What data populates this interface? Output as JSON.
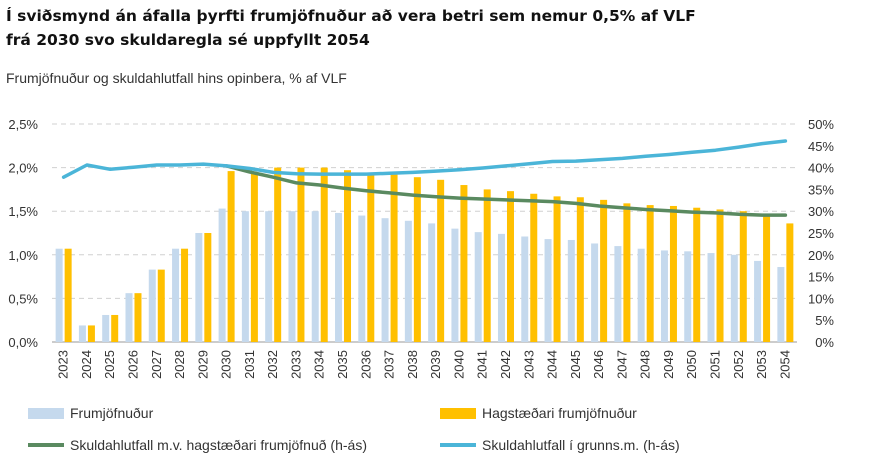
{
  "title_line1": "Í sviðsmynd án áfalla þyrfti frumjöfnuður að vera betri sem nemur 0,5% af VLF",
  "title_line2": "frá 2030 svo skuldaregla sé uppfyllt 2054",
  "subtitle": "Frumjöfnuður og skuldahlutfall hins opinbera, % af VLF",
  "colors": {
    "primary_bar": "#c5d9ed",
    "favorable_bar": "#ffc000",
    "debt_favorable": "#5a8a60",
    "debt_base": "#4bb5d8",
    "grid": "#d0d0d0"
  },
  "chart_data": {
    "type": "bar",
    "categories": [
      "2023",
      "2024",
      "2025",
      "2026",
      "2027",
      "2028",
      "2029",
      "2030",
      "2031",
      "2032",
      "2033",
      "2034",
      "2035",
      "2036",
      "2037",
      "2038",
      "2039",
      "2040",
      "2041",
      "2042",
      "2043",
      "2044",
      "2045",
      "2046",
      "2047",
      "2048",
      "2049",
      "2050",
      "2051",
      "2052",
      "2053",
      "2054"
    ],
    "yticks_left": [
      "0,0%",
      "0,5%",
      "1,0%",
      "1,5%",
      "2,0%",
      "2,5%"
    ],
    "yticks_right": [
      "0%",
      "5%",
      "10%",
      "15%",
      "20%",
      "25%",
      "30%",
      "35%",
      "40%",
      "45%",
      "50%"
    ],
    "ylim": [
      0,
      2.5
    ],
    "ylim_right": [
      0,
      50
    ],
    "series": [
      {
        "name": "Frumjöfnuður",
        "type": "bar",
        "axis": "left",
        "values": [
          1.07,
          0.19,
          0.31,
          0.56,
          0.83,
          1.07,
          1.25,
          1.53,
          1.5,
          1.5,
          1.5,
          1.5,
          1.48,
          1.45,
          1.42,
          1.39,
          1.36,
          1.3,
          1.26,
          1.24,
          1.21,
          1.18,
          1.17,
          1.13,
          1.1,
          1.07,
          1.05,
          1.04,
          1.02,
          1.0,
          0.93,
          0.86
        ]
      },
      {
        "name": "Hagstæðari frumjöfnuður",
        "type": "bar",
        "axis": "left",
        "values": [
          1.07,
          0.19,
          0.31,
          0.56,
          0.83,
          1.07,
          1.25,
          1.96,
          1.95,
          2.0,
          2.0,
          2.0,
          1.97,
          1.94,
          1.92,
          1.89,
          1.86,
          1.8,
          1.75,
          1.73,
          1.7,
          1.67,
          1.66,
          1.63,
          1.59,
          1.57,
          1.56,
          1.54,
          1.52,
          1.5,
          1.44,
          1.36
        ]
      },
      {
        "name": "Skuldahlutfall m.v. hagstæðari frumjöfnuð (h-ás)",
        "type": "line",
        "axis": "right",
        "values": [
          null,
          null,
          null,
          null,
          null,
          null,
          null,
          40.4,
          39.0,
          37.8,
          36.5,
          36.0,
          35.3,
          34.7,
          34.2,
          33.7,
          33.3,
          33.0,
          32.8,
          32.6,
          32.4,
          32.2,
          31.8,
          31.2,
          30.8,
          30.4,
          30.1,
          29.8,
          29.6,
          29.3,
          29.1,
          29.1
        ]
      },
      {
        "name": "Skuldahlutfall í grunns.m. (h-ás)",
        "type": "line",
        "axis": "right",
        "values": [
          37.8,
          40.6,
          39.6,
          40.1,
          40.6,
          40.6,
          40.8,
          40.4,
          39.8,
          38.9,
          38.6,
          38.5,
          38.5,
          38.5,
          38.7,
          38.9,
          39.2,
          39.5,
          39.9,
          40.4,
          40.9,
          41.4,
          41.5,
          41.8,
          42.1,
          42.6,
          43.0,
          43.5,
          44.0,
          44.7,
          45.5,
          46.1
        ]
      }
    ]
  }
}
